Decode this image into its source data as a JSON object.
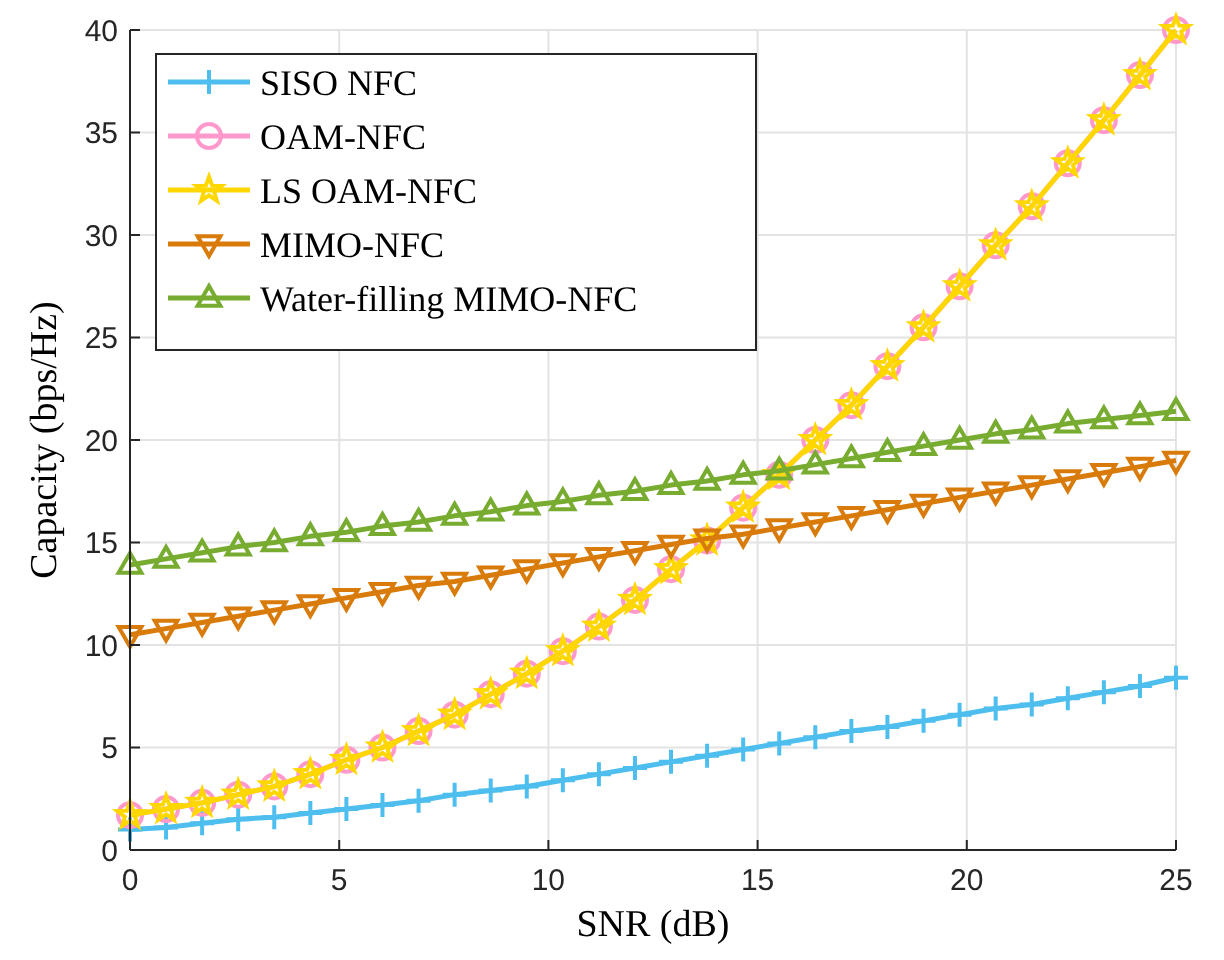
{
  "chart_data": {
    "type": "line",
    "xlabel": "SNR (dB)",
    "ylabel": "Capacity (bps/Hz)",
    "x": [
      0,
      0.862,
      1.724,
      2.586,
      3.448,
      4.31,
      5.172,
      6.034,
      6.897,
      7.759,
      8.621,
      9.483,
      10.345,
      11.207,
      12.069,
      12.931,
      13.793,
      14.655,
      15.517,
      16.379,
      17.241,
      18.103,
      18.966,
      19.828,
      20.69,
      21.552,
      22.414,
      23.276,
      24.138,
      25
    ],
    "xlim": [
      0,
      25
    ],
    "xticks": [
      0,
      5,
      10,
      15,
      20,
      25
    ],
    "ylim": [
      0,
      40
    ],
    "yticks": [
      0,
      5,
      10,
      15,
      20,
      25,
      30,
      35,
      40
    ],
    "grid": true,
    "legend": "top left",
    "line_style": "solid",
    "series": [
      {
        "name": "SISO NFC",
        "color": "#4dbeee",
        "marker": "cross",
        "values": [
          1.0,
          1.1,
          1.3,
          1.5,
          1.6,
          1.8,
          2.0,
          2.2,
          2.4,
          2.7,
          2.9,
          3.1,
          3.4,
          3.7,
          4.0,
          4.3,
          4.6,
          4.9,
          5.2,
          5.5,
          5.8,
          6.0,
          6.3,
          6.6,
          6.9,
          7.1,
          7.4,
          7.7,
          8.0,
          8.4
        ]
      },
      {
        "name": "OAM-NFC",
        "color": "#ff99cc",
        "marker": "circle",
        "values": [
          1.7,
          2.0,
          2.3,
          2.7,
          3.1,
          3.7,
          4.4,
          5.0,
          5.8,
          6.6,
          7.6,
          8.6,
          9.7,
          10.9,
          12.2,
          13.7,
          15.1,
          16.7,
          18.3,
          20.0,
          21.7,
          23.6,
          25.5,
          27.5,
          29.5,
          31.4,
          33.5,
          35.6,
          37.8,
          40.0
        ]
      },
      {
        "name": "LS OAM-NFC",
        "color": "#ffd700",
        "marker": "star",
        "values": [
          1.7,
          2.0,
          2.3,
          2.7,
          3.1,
          3.7,
          4.4,
          5.0,
          5.8,
          6.6,
          7.6,
          8.6,
          9.7,
          10.9,
          12.2,
          13.7,
          15.1,
          16.7,
          18.3,
          20.0,
          21.7,
          23.6,
          25.5,
          27.5,
          29.5,
          31.4,
          33.5,
          35.6,
          37.8,
          40.0
        ]
      },
      {
        "name": "MIMO-NFC",
        "color": "#d97b0a",
        "marker": "triangle-down",
        "values": [
          10.5,
          10.8,
          11.1,
          11.4,
          11.7,
          12.0,
          12.3,
          12.6,
          12.9,
          13.1,
          13.4,
          13.7,
          14.0,
          14.3,
          14.6,
          14.9,
          15.2,
          15.4,
          15.7,
          16.0,
          16.3,
          16.6,
          16.9,
          17.2,
          17.5,
          17.8,
          18.1,
          18.4,
          18.7,
          19.0
        ]
      },
      {
        "name": "Water-filling MIMO-NFC",
        "color": "#77ac30",
        "marker": "triangle",
        "values": [
          13.9,
          14.2,
          14.5,
          14.8,
          15.0,
          15.3,
          15.5,
          15.8,
          16.0,
          16.3,
          16.5,
          16.8,
          17.0,
          17.3,
          17.5,
          17.8,
          18.0,
          18.3,
          18.5,
          18.8,
          19.1,
          19.4,
          19.7,
          20.0,
          20.3,
          20.5,
          20.8,
          21.0,
          21.2,
          21.4
        ]
      }
    ]
  }
}
